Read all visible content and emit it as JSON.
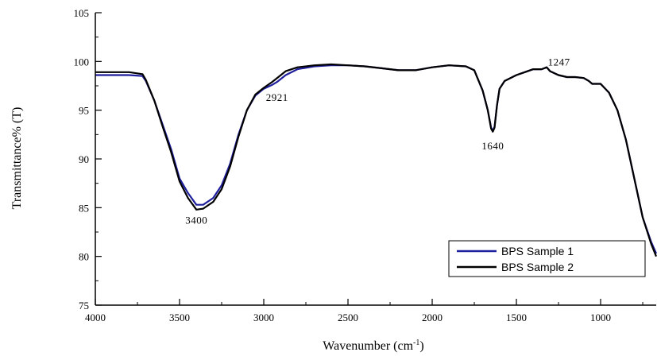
{
  "chart_data": {
    "type": "line",
    "xlabel": "Wavenumber (cm",
    "xlabel_sup": "-1",
    "xlabel_end": ")",
    "ylabel": "Transmittance% (T)",
    "xlim": [
      4000,
      670
    ],
    "ylim": [
      75,
      105
    ],
    "x_ticks": [
      4000,
      3500,
      3000,
      2500,
      2000,
      1500,
      1000
    ],
    "y_ticks": [
      75,
      80,
      85,
      90,
      95,
      100,
      105
    ],
    "grid": false,
    "legend_position": "bottom-right",
    "annotations": [
      {
        "text": "3400",
        "x": 3400,
        "y": 85.0
      },
      {
        "text": "2921",
        "x": 2921,
        "y": 97.5
      },
      {
        "text": "1640",
        "x": 1640,
        "y": 93.0
      },
      {
        "text": "1247",
        "x": 1247,
        "y": 98.5
      }
    ],
    "series": [
      {
        "name": "BPS Sample 1",
        "color": "#1f1f9e",
        "points": [
          [
            4000,
            98.6
          ],
          [
            3800,
            98.6
          ],
          [
            3720,
            98.5
          ],
          [
            3700,
            98.0
          ],
          [
            3650,
            96.0
          ],
          [
            3600,
            93.5
          ],
          [
            3550,
            91.0
          ],
          [
            3500,
            88.0
          ],
          [
            3450,
            86.5
          ],
          [
            3400,
            85.3
          ],
          [
            3360,
            85.3
          ],
          [
            3300,
            86.0
          ],
          [
            3250,
            87.3
          ],
          [
            3200,
            89.5
          ],
          [
            3150,
            92.5
          ],
          [
            3100,
            95.0
          ],
          [
            3050,
            96.5
          ],
          [
            3000,
            97.2
          ],
          [
            2950,
            97.6
          ],
          [
            2921,
            97.9
          ],
          [
            2870,
            98.6
          ],
          [
            2800,
            99.2
          ],
          [
            2700,
            99.5
          ],
          [
            2600,
            99.6
          ],
          [
            2500,
            99.6
          ],
          [
            2400,
            99.5
          ],
          [
            2300,
            99.3
          ],
          [
            2200,
            99.1
          ],
          [
            2100,
            99.1
          ],
          [
            2000,
            99.4
          ],
          [
            1900,
            99.6
          ],
          [
            1800,
            99.5
          ],
          [
            1750,
            99.1
          ],
          [
            1700,
            97.0
          ],
          [
            1670,
            95.0
          ],
          [
            1650,
            93.2
          ],
          [
            1640,
            92.9
          ],
          [
            1630,
            93.3
          ],
          [
            1615,
            95.5
          ],
          [
            1600,
            97.2
          ],
          [
            1570,
            98.0
          ],
          [
            1500,
            98.6
          ],
          [
            1450,
            98.9
          ],
          [
            1400,
            99.2
          ],
          [
            1350,
            99.2
          ],
          [
            1320,
            99.4
          ],
          [
            1300,
            99.0
          ],
          [
            1250,
            98.6
          ],
          [
            1200,
            98.4
          ],
          [
            1150,
            98.4
          ],
          [
            1100,
            98.3
          ],
          [
            1070,
            98.0
          ],
          [
            1050,
            97.7
          ],
          [
            1000,
            97.7
          ],
          [
            950,
            96.8
          ],
          [
            900,
            95.0
          ],
          [
            850,
            92.0
          ],
          [
            800,
            88.0
          ],
          [
            750,
            84.0
          ],
          [
            700,
            81.5
          ],
          [
            670,
            80.3
          ]
        ]
      },
      {
        "name": "BPS Sample 2",
        "color": "#000000",
        "points": [
          [
            4000,
            98.9
          ],
          [
            3800,
            98.9
          ],
          [
            3720,
            98.7
          ],
          [
            3700,
            98.1
          ],
          [
            3650,
            96.0
          ],
          [
            3600,
            93.3
          ],
          [
            3550,
            90.7
          ],
          [
            3500,
            87.7
          ],
          [
            3450,
            86.0
          ],
          [
            3400,
            84.8
          ],
          [
            3360,
            84.9
          ],
          [
            3300,
            85.6
          ],
          [
            3250,
            86.9
          ],
          [
            3200,
            89.2
          ],
          [
            3150,
            92.3
          ],
          [
            3100,
            95.0
          ],
          [
            3050,
            96.6
          ],
          [
            3000,
            97.3
          ],
          [
            2950,
            97.9
          ],
          [
            2921,
            98.3
          ],
          [
            2870,
            99.0
          ],
          [
            2800,
            99.4
          ],
          [
            2700,
            99.6
          ],
          [
            2600,
            99.7
          ],
          [
            2500,
            99.6
          ],
          [
            2400,
            99.5
          ],
          [
            2300,
            99.3
          ],
          [
            2200,
            99.1
          ],
          [
            2100,
            99.1
          ],
          [
            2000,
            99.4
          ],
          [
            1900,
            99.6
          ],
          [
            1800,
            99.5
          ],
          [
            1750,
            99.1
          ],
          [
            1700,
            97.0
          ],
          [
            1670,
            95.0
          ],
          [
            1650,
            93.1
          ],
          [
            1640,
            92.8
          ],
          [
            1630,
            93.2
          ],
          [
            1615,
            95.5
          ],
          [
            1600,
            97.2
          ],
          [
            1570,
            98.0
          ],
          [
            1500,
            98.6
          ],
          [
            1450,
            98.9
          ],
          [
            1400,
            99.2
          ],
          [
            1350,
            99.2
          ],
          [
            1320,
            99.4
          ],
          [
            1300,
            99.0
          ],
          [
            1250,
            98.6
          ],
          [
            1200,
            98.4
          ],
          [
            1150,
            98.4
          ],
          [
            1100,
            98.3
          ],
          [
            1070,
            98.0
          ],
          [
            1050,
            97.7
          ],
          [
            1000,
            97.7
          ],
          [
            950,
            96.8
          ],
          [
            900,
            95.0
          ],
          [
            850,
            92.0
          ],
          [
            800,
            88.0
          ],
          [
            750,
            84.0
          ],
          [
            700,
            81.3
          ],
          [
            670,
            80.0
          ]
        ]
      }
    ]
  }
}
